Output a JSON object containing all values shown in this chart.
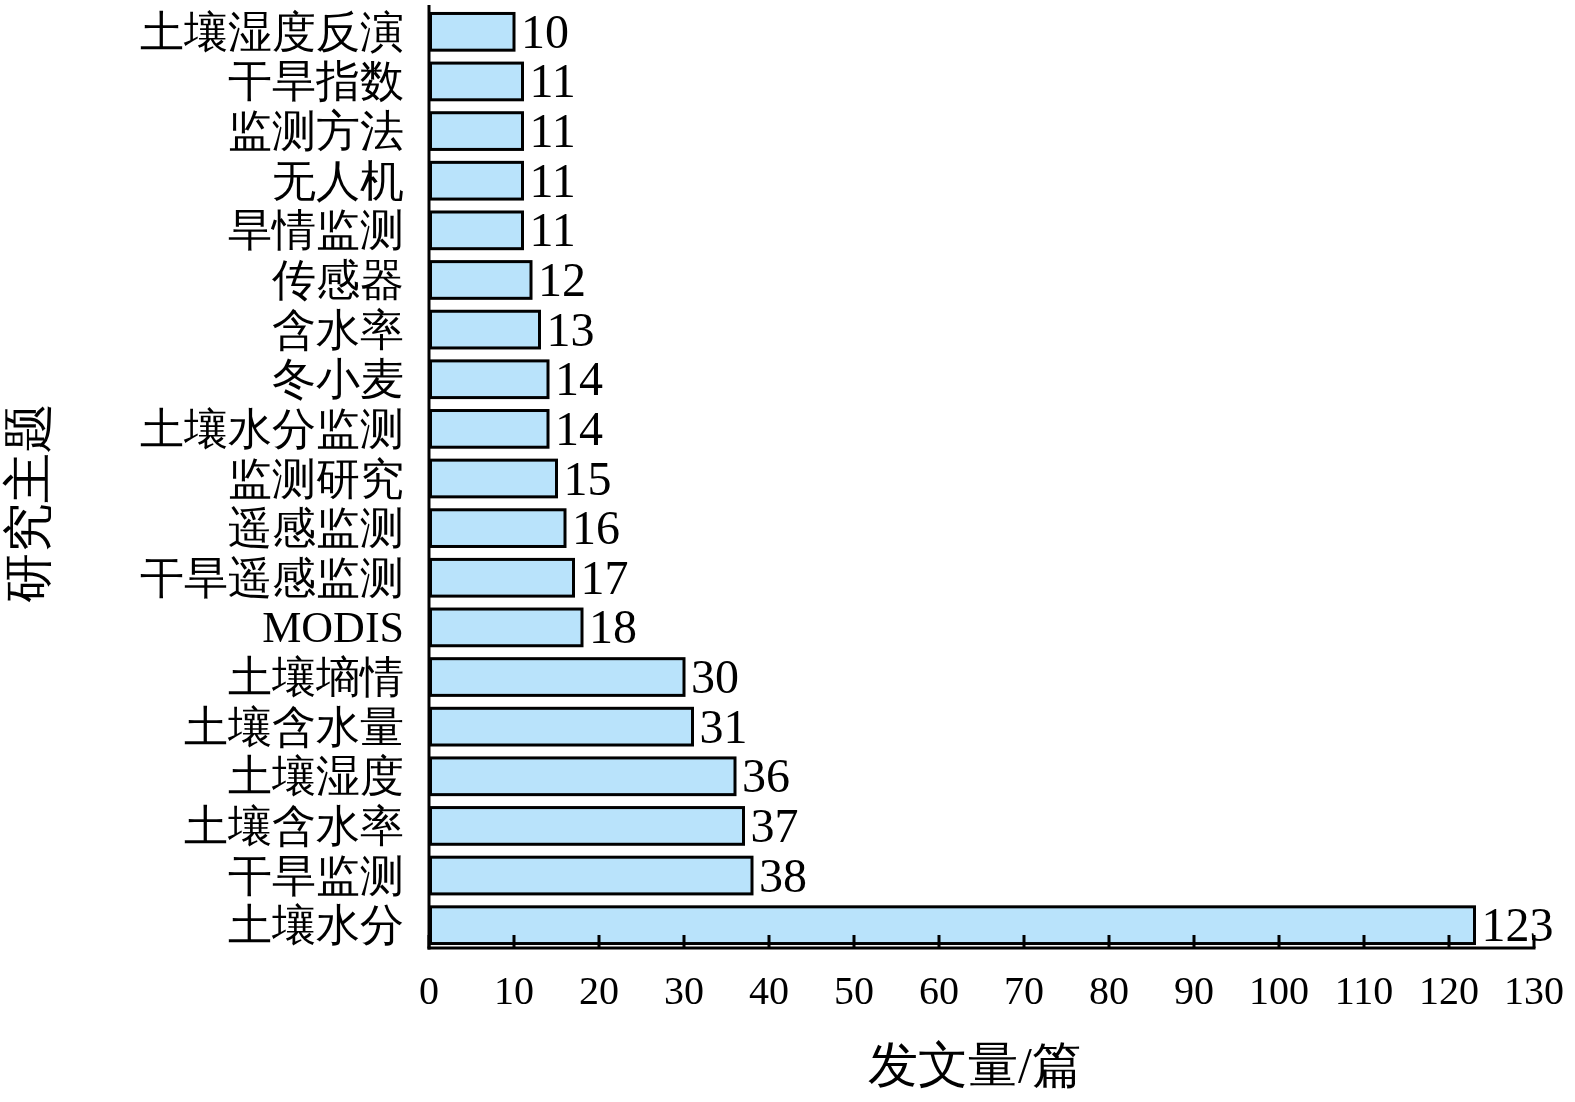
{
  "chart_data": {
    "type": "bar",
    "orientation": "horizontal",
    "categories": [
      "土壤湿度反演",
      "干旱指数",
      "监测方法",
      "无人机",
      "旱情监测",
      "传感器",
      "含水率",
      "冬小麦",
      "土壤水分监测",
      "监测研究",
      "遥感监测",
      "干旱遥感监测",
      "MODIS",
      "土壤墒情",
      "土壤含水量",
      "土壤湿度",
      "土壤含水率",
      "干旱监测",
      "土壤水分"
    ],
    "values": [
      10,
      11,
      11,
      11,
      11,
      12,
      13,
      14,
      14,
      15,
      16,
      17,
      18,
      30,
      31,
      36,
      37,
      38,
      123
    ],
    "color": "#b9e3fb",
    "data_labels": true,
    "xlim": [
      0,
      130
    ],
    "xticks": [
      0,
      10,
      20,
      30,
      40,
      50,
      60,
      70,
      80,
      90,
      100,
      110,
      120,
      130
    ],
    "xlabel": "发文量/篇",
    "ylabel": "研究主题"
  }
}
